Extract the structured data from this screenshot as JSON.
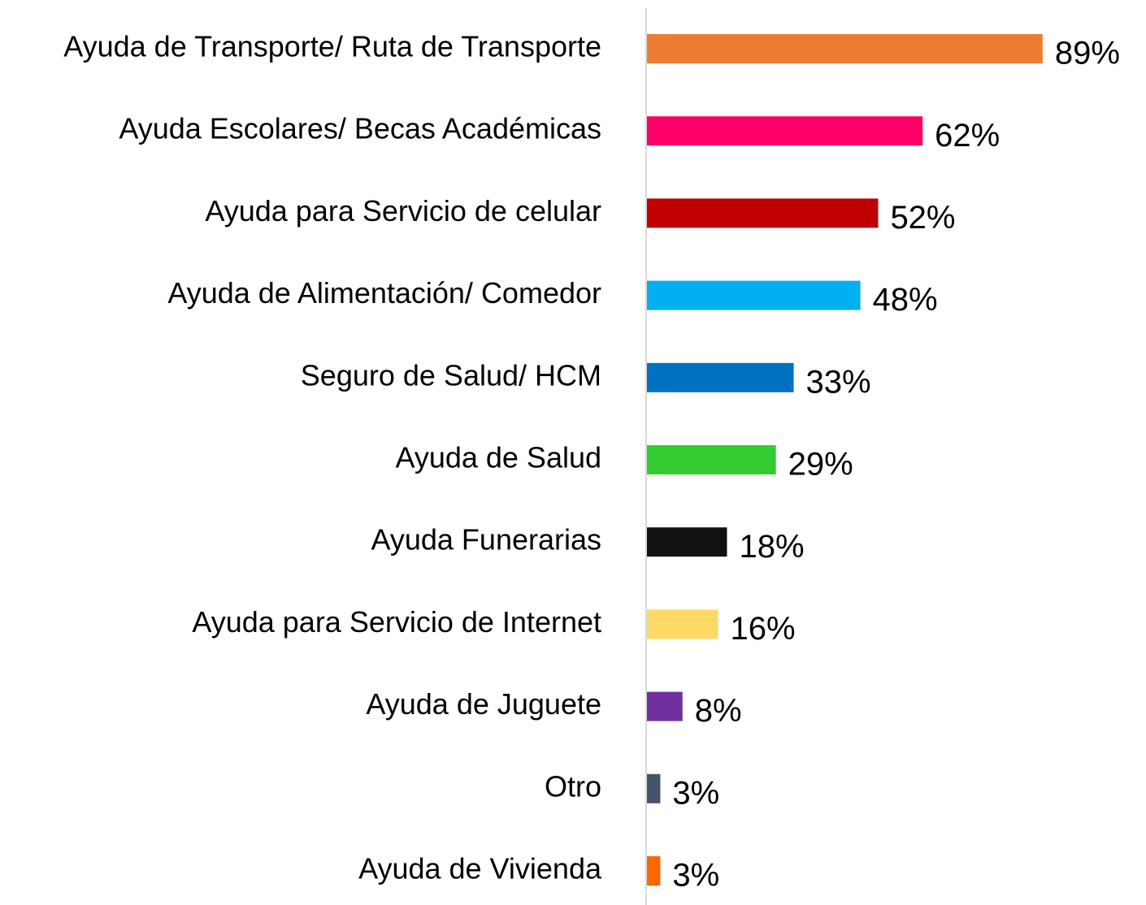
{
  "chart_data": {
    "type": "bar",
    "orientation": "horizontal",
    "categories": [
      "Ayuda de Transporte/ Ruta de Transporte",
      "Ayuda Escolares/ Becas Académicas",
      "Ayuda para Servicio de celular",
      "Ayuda de Alimentación/ Comedor",
      "Seguro de Salud/ HCM",
      "Ayuda de Salud",
      "Ayuda Funerarias",
      "Ayuda para Servicio de Internet",
      "Ayuda de Juguete",
      "Otro",
      "Ayuda de Vivienda"
    ],
    "values": [
      89,
      62,
      52,
      48,
      33,
      29,
      18,
      16,
      8,
      3,
      3
    ],
    "value_labels": [
      "89%",
      "62%",
      "52%",
      "48%",
      "33%",
      "29%",
      "18%",
      "16%",
      "8%",
      "3%",
      "3%"
    ],
    "colors": [
      "#ed7d31",
      "#ff0066",
      "#c00000",
      "#00b0f0",
      "#0070c0",
      "#33cc33",
      "#111111",
      "#ffd966",
      "#7030a0",
      "#44546a",
      "#ff6600"
    ],
    "xlim": [
      0,
      100
    ]
  }
}
